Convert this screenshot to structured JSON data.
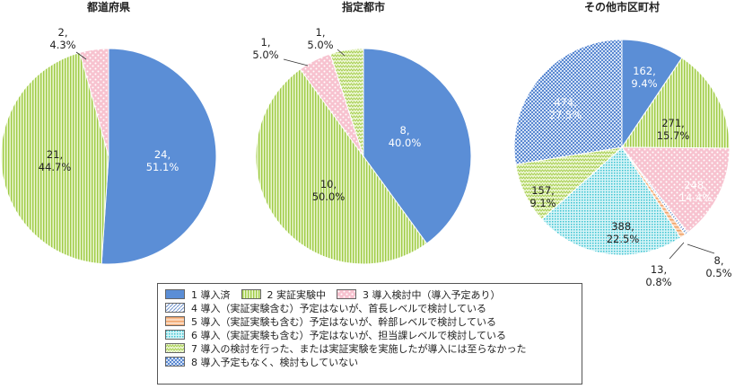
{
  "chart_data": [
    {
      "type": "pie",
      "title": "都道府県",
      "slices": [
        {
          "category": 1,
          "count": "24",
          "percent": "51.1%",
          "value": 51.1
        },
        {
          "category": 2,
          "count": "21",
          "percent": "44.7%",
          "value": 44.7
        },
        {
          "category": 3,
          "count": "2",
          "percent": "4.3%",
          "value": 4.3
        }
      ]
    },
    {
      "type": "pie",
      "title": "指定都市",
      "slices": [
        {
          "category": 1,
          "count": "8",
          "percent": "40.0%",
          "value": 40.0
        },
        {
          "category": 2,
          "count": "10",
          "percent": "50.0%",
          "value": 50.0
        },
        {
          "category": 3,
          "count": "1",
          "percent": "5.0%",
          "value": 5.0
        },
        {
          "category": 7,
          "count": "1",
          "percent": "5.0%",
          "value": 5.0
        }
      ]
    },
    {
      "type": "pie",
      "title": "その他市区町村",
      "slices": [
        {
          "category": 1,
          "count": "162",
          "percent": "9.4%",
          "value": 9.4
        },
        {
          "category": 2,
          "count": "271",
          "percent": "15.7%",
          "value": 15.7
        },
        {
          "category": 3,
          "count": "248",
          "percent": "14.4%",
          "value": 14.4
        },
        {
          "category": 4,
          "count": "8",
          "percent": "0.5%",
          "value": 0.5
        },
        {
          "category": 5,
          "count": "13",
          "percent": "0.8%",
          "value": 0.8
        },
        {
          "category": 6,
          "count": "388",
          "percent": "22.5%",
          "value": 22.5
        },
        {
          "category": 7,
          "count": "157",
          "percent": "9.1%",
          "value": 9.1
        },
        {
          "category": 8,
          "count": "474",
          "percent": "27.5%",
          "value": 27.5
        }
      ]
    }
  ],
  "legend": [
    {
      "id": 1,
      "text": "1 導入済"
    },
    {
      "id": 2,
      "text": "2 実証実験中"
    },
    {
      "id": 3,
      "text": "3 導入検討中（導入予定あり）"
    },
    {
      "id": 4,
      "text": "4 導入（実証実験含む）予定はないが、首長レベルで検討している"
    },
    {
      "id": 5,
      "text": "5 導入（実証実験も含む）予定はないが、幹部レベルで検討している"
    },
    {
      "id": 6,
      "text": "6 導入（実証実験も含む）予定はないが、担当課レベルで検討している"
    },
    {
      "id": 7,
      "text": "7 導入の検討を行った、または実証実験を実施したが導入には至らなかった"
    },
    {
      "id": 8,
      "text": "8 導入予定もなく、検討もしていない"
    }
  ],
  "colors": {
    "cat1": "#5b8ed6",
    "cat2": "#b8dc6a",
    "cat3": "#f9c9d4",
    "cat4": "#8fb0dc",
    "cat5": "#f6b98a",
    "cat6": "#5fd0dc",
    "cat7": "#c6e08a",
    "cat8": "#6f9ad8"
  }
}
